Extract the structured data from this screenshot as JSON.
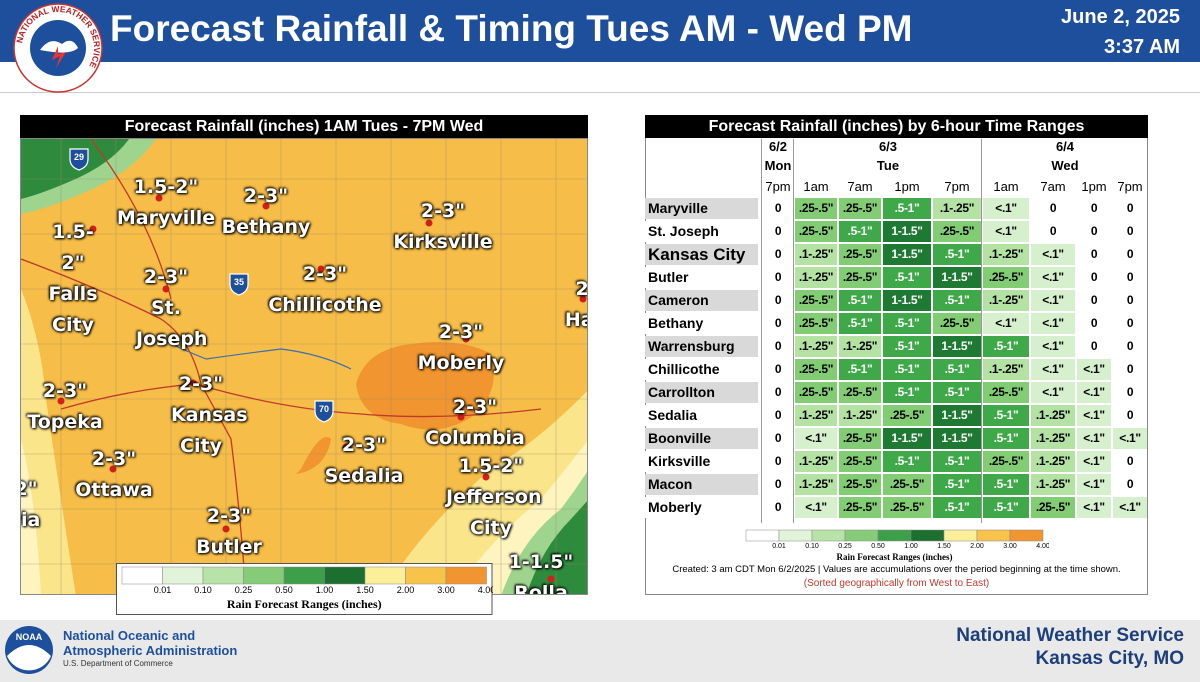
{
  "header": {
    "title": "Forecast Rainfall & Timing Tues AM - Wed PM",
    "date": "June 2, 2025",
    "time": "3:37 AM",
    "logo_text": "NATIONAL WEATHER SERVICE"
  },
  "legend_colors": [
    "#ffffff",
    "#e1f3d8",
    "#b8e3a8",
    "#86cc78",
    "#3e9f4a",
    "#1d6f30",
    "#fbef9a",
    "#f7c34a",
    "#f0952f"
  ],
  "map": {
    "title": "Forecast Rainfall (inches) 1AM Tues - 7PM Wed",
    "labels": [
      {
        "range": "1.5-2\"",
        "name": "Maryville"
      },
      {
        "range": "2-3\"",
        "name": "Bethany"
      },
      {
        "range": "2-3\"",
        "name": "Kirksville"
      },
      {
        "range": "1.5-2\"",
        "name": "Falls City"
      },
      {
        "range": "2-3\"",
        "name": "St. Joseph"
      },
      {
        "range": "2-3\"",
        "name": "Chillicothe"
      },
      {
        "range": "2-3\"",
        "name": "Moberly"
      },
      {
        "range": "2-3\"",
        "name": "Topeka"
      },
      {
        "range": "2-3\"",
        "name": "Kansas City"
      },
      {
        "range": "2-3\"",
        "name": "Columbia"
      },
      {
        "range": "2-3\"",
        "name": "Sedalia"
      },
      {
        "range": "1.5-2\"",
        "name": "Jefferson City"
      },
      {
        "range": "2-3\"",
        "name": "Ottawa"
      },
      {
        "range": "2-3\"",
        "name": "Butler"
      },
      {
        "range": "1-1.5\"",
        "name": "Rolla"
      },
      {
        "range": "2-",
        "name": "Han"
      },
      {
        "range": "2\"",
        "name": "ria"
      }
    ],
    "highways": [
      "29",
      "35",
      "70"
    ],
    "legend": {
      "ticks": [
        "0.01",
        "0.10",
        "0.25",
        "0.50",
        "1.00",
        "1.50",
        "2.00",
        "3.00",
        "4.00"
      ],
      "title": "Rain Forecast Ranges (inches)"
    }
  },
  "table": {
    "title": "Forecast Rainfall (inches) by 6-hour Time Ranges",
    "groups": [
      {
        "date": "6/2",
        "day": "Mon",
        "times": [
          "7pm"
        ]
      },
      {
        "date": "6/3",
        "day": "Tue",
        "times": [
          "1am",
          "7am",
          "1pm",
          "7pm"
        ]
      },
      {
        "date": "6/4",
        "day": "Wed",
        "times": [
          "1am",
          "7am",
          "1pm",
          "7pm"
        ]
      }
    ],
    "rows": [
      {
        "city": "Maryville",
        "values": [
          "0",
          ".25-.5\"",
          ".25-.5\"",
          ".5-1\"",
          ".1-.25\"",
          "<.1\"",
          "0",
          "0",
          "0"
        ]
      },
      {
        "city": "St. Joseph",
        "values": [
          "0",
          ".25-.5\"",
          ".5-1\"",
          "1-1.5\"",
          ".25-.5\"",
          "<.1\"",
          "0",
          "0",
          "0"
        ]
      },
      {
        "city": "Kansas City",
        "values": [
          "0",
          ".1-.25\"",
          ".25-.5\"",
          "1-1.5\"",
          ".5-1\"",
          ".1-.25\"",
          "<.1\"",
          "0",
          "0"
        ]
      },
      {
        "city": "Butler",
        "values": [
          "0",
          ".1-.25\"",
          ".25-.5\"",
          ".5-1\"",
          "1-1.5\"",
          ".25-.5\"",
          "<.1\"",
          "0",
          "0"
        ]
      },
      {
        "city": "Cameron",
        "values": [
          "0",
          ".25-.5\"",
          ".5-1\"",
          "1-1.5\"",
          ".5-1\"",
          ".1-.25\"",
          "<.1\"",
          "0",
          "0"
        ]
      },
      {
        "city": "Bethany",
        "values": [
          "0",
          ".25-.5\"",
          ".5-1\"",
          ".5-1\"",
          ".25-.5\"",
          "<.1\"",
          "<.1\"",
          "0",
          "0"
        ]
      },
      {
        "city": "Warrensburg",
        "values": [
          "0",
          ".1-.25\"",
          ".1-.25\"",
          ".5-1\"",
          "1-1.5\"",
          ".5-1\"",
          "<.1\"",
          "0",
          "0"
        ]
      },
      {
        "city": "Chillicothe",
        "values": [
          "0",
          ".25-.5\"",
          ".5-1\"",
          ".5-1\"",
          ".5-1\"",
          ".1-.25\"",
          "<.1\"",
          "<.1\"",
          "0"
        ]
      },
      {
        "city": "Carrollton",
        "values": [
          "0",
          ".25-.5\"",
          ".25-.5\"",
          ".5-1\"",
          ".5-1\"",
          ".25-.5\"",
          "<.1\"",
          "<.1\"",
          "0"
        ]
      },
      {
        "city": "Sedalia",
        "values": [
          "0",
          ".1-.25\"",
          ".1-.25\"",
          ".25-.5\"",
          "1-1.5\"",
          ".5-1\"",
          ".1-.25\"",
          "<.1\"",
          "0"
        ]
      },
      {
        "city": "Boonville",
        "values": [
          "0",
          "<.1\"",
          ".25-.5\"",
          "1-1.5\"",
          "1-1.5\"",
          ".5-1\"",
          ".1-.25\"",
          "<.1\"",
          "<.1\""
        ]
      },
      {
        "city": "Kirksville",
        "values": [
          "0",
          ".1-.25\"",
          ".25-.5\"",
          ".5-1\"",
          ".5-1\"",
          ".25-.5\"",
          ".1-.25\"",
          "<.1\"",
          "0"
        ]
      },
      {
        "city": "Macon",
        "values": [
          "0",
          ".1-.25\"",
          ".25-.5\"",
          ".25-.5\"",
          ".5-1\"",
          ".5-1\"",
          ".1-.25\"",
          "<.1\"",
          "0"
        ]
      },
      {
        "city": "Moberly",
        "values": [
          "0",
          "<.1\"",
          ".25-.5\"",
          ".25-.5\"",
          ".5-1\"",
          ".5-1\"",
          ".25-.5\"",
          "<.1\"",
          "<.1\""
        ]
      }
    ],
    "range_styles": {
      "0": {
        "fill": "#ffffff",
        "text": "#000000"
      },
      "<.1\"": {
        "fill": "#d6efcd",
        "text": "#000000"
      },
      ".1-.25\"": {
        "fill": "#b3e2a3",
        "text": "#000000"
      },
      ".25-.5\"": {
        "fill": "#82cc73",
        "text": "#000000"
      },
      ".5-1\"": {
        "fill": "#3fa94a",
        "text": "#ffffff"
      },
      "1-1.5\"": {
        "fill": "#1e7a33",
        "text": "#ffffff"
      }
    },
    "legend": {
      "ticks": [
        "0.01",
        "0.10",
        "0.25",
        "0.50",
        "1.00",
        "1.50",
        "2.00",
        "3.00",
        "4.00"
      ],
      "title": "Rain Forecast Ranges (inches)"
    },
    "note": "Created: 3 am CDT Mon 6/2/2025  |  Values are accumulations over the period beginning at the time shown.",
    "sort_note": "(Sorted geographically from West to East)"
  },
  "footer": {
    "agency_line1": "National Oceanic and",
    "agency_line2": "Atmospheric Administration",
    "department": "U.S. Department of Commerce",
    "logo_text": "NOAA",
    "office_line1": "National Weather Service",
    "office_line2": "Kansas City, MO"
  }
}
